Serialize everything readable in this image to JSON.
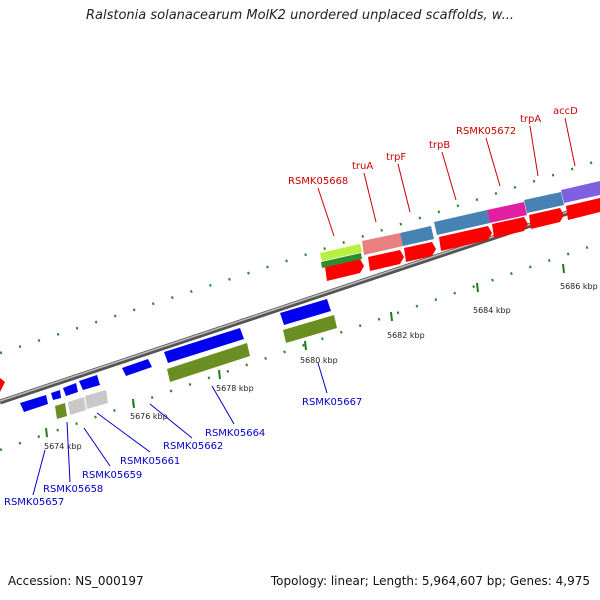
{
  "title": "Ralstonia solanacearum MolK2 unordered unplaced scaffolds, w...",
  "footer": {
    "accession": "Accession: NS_000197",
    "summary": "Topology: linear; Length: 5,964,607 bp; Genes: 4,975"
  },
  "colors": {
    "backbone": "#7f7f7f",
    "tick": "#1f7a1f",
    "red_label": "#cc0000",
    "blue_label": "#0000cc",
    "forward_gene": "#ff0000",
    "reverse_gene": "#0000ee",
    "track_olive": "#6b8e23",
    "track_steel": "#4682b4",
    "track_magenta": "#e020a0",
    "track_salmon": "#e88080",
    "track_lime": "#b8f040",
    "track_violet": "#8060e0",
    "track_gray": "#c8c8c8"
  },
  "ticks": [
    "5674 kbp",
    "5676 kbp",
    "5678 kbp",
    "5680 kbp",
    "5682 kbp",
    "5684 kbp",
    "5686 kbp"
  ],
  "top_labels": [
    "RSMK05668",
    "truA",
    "trpF",
    "trpB",
    "RSMK05672",
    "trpA",
    "accD"
  ],
  "bottom_labels": [
    "RSMK05657",
    "RSMK05658",
    "RSMK05659",
    "RSMK05661",
    "RSMK05662",
    "RSMK05664",
    "RSMK05667"
  ]
}
